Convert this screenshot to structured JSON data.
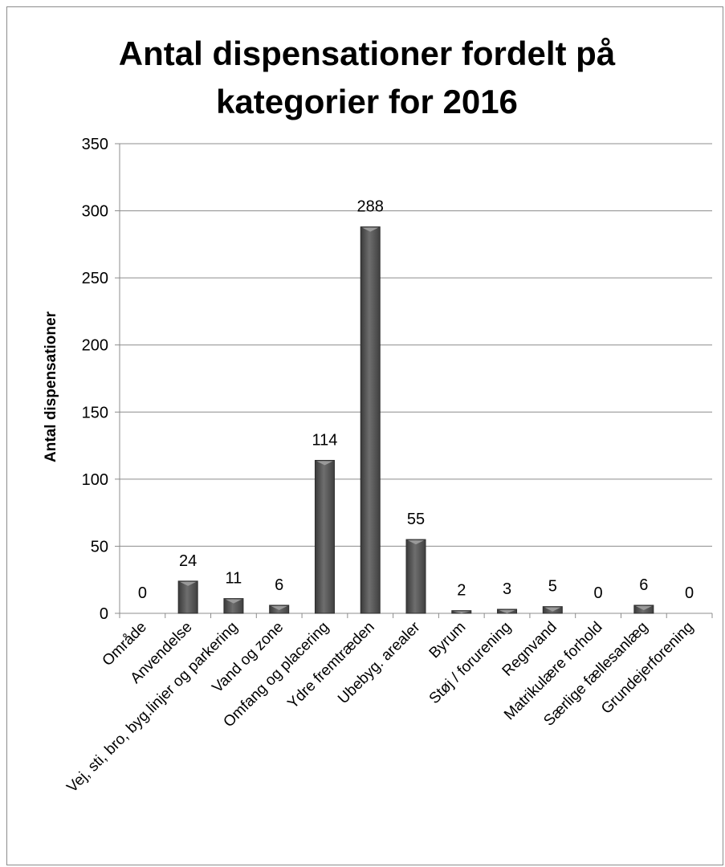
{
  "chart_data": {
    "type": "bar",
    "title_lines": [
      "Antal dispensationer fordelt på",
      "kategorier for 2016"
    ],
    "ylabel": "Antal dispensationer",
    "xlabel": "",
    "ylim": [
      0,
      350
    ],
    "yticks": [
      0,
      50,
      100,
      150,
      200,
      250,
      300,
      350
    ],
    "grid": true,
    "legend": "none",
    "bar_color": "#5a5a5a",
    "categories": [
      "Område",
      "Anvendelse",
      "Vej, sti, bro, byg.linjer og parkering",
      "Vand og zone",
      "Omfang og placering",
      "Ydre fremtræden",
      "Ubebyg. arealer",
      "Byrum",
      "Støj / forurening",
      "Regnvand",
      "Matrikulære forhold",
      "Særlige fællesanlæg",
      "Grundejerforening"
    ],
    "values": [
      0,
      24,
      11,
      6,
      114,
      288,
      55,
      2,
      3,
      5,
      0,
      6,
      0
    ]
  }
}
